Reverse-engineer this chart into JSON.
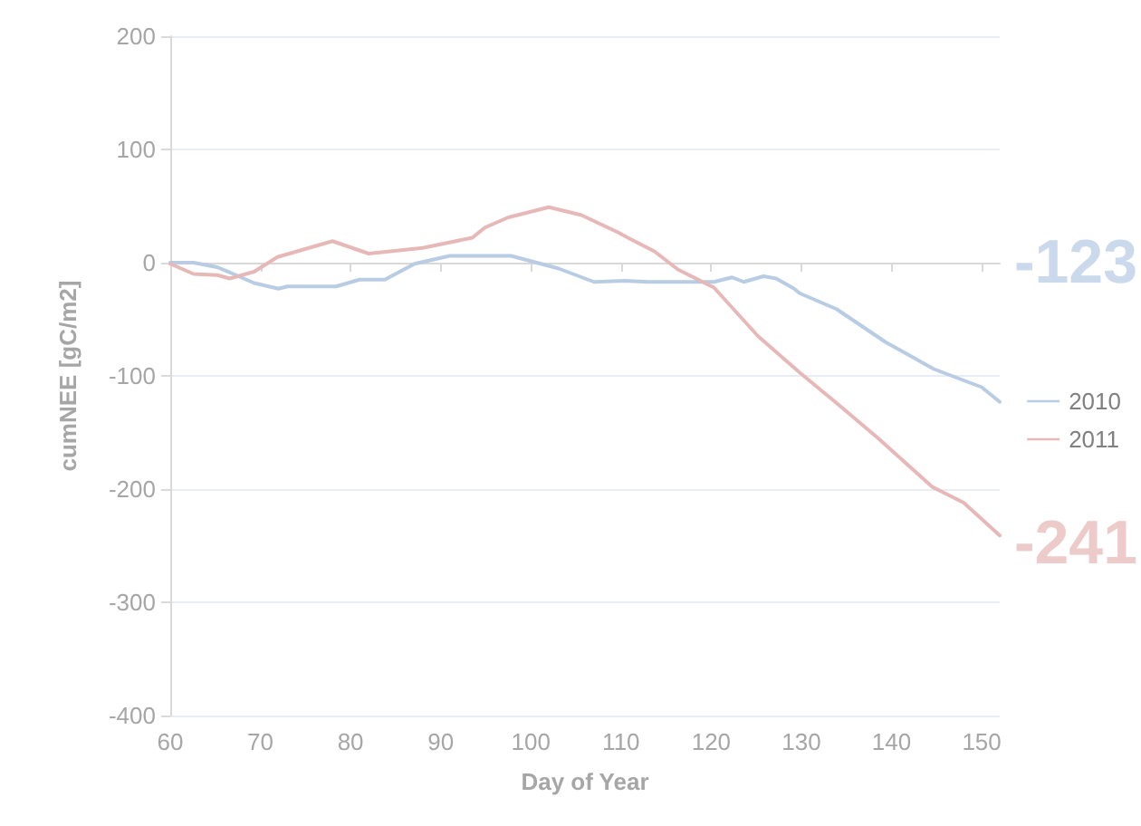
{
  "chart_data": {
    "type": "line",
    "xlabel": "Day of Year",
    "ylabel": "cumNEE [gC/m2]",
    "xlim": [
      60,
      152
    ],
    "xticks": [
      60,
      70,
      80,
      90,
      100,
      110,
      120,
      130,
      140,
      150
    ],
    "ylim": [
      -400,
      200
    ],
    "yticks": [
      -400,
      -300,
      -200,
      -100,
      0,
      100,
      200
    ],
    "grid": "y",
    "legend": "right",
    "marker": "none",
    "line_style": "solid",
    "series": [
      {
        "name": "2010",
        "color": "#b8cce4",
        "x": [
          60,
          62.6,
          65.2,
          67,
          69.3,
          72,
          73,
          78.4,
          81,
          83.8,
          87.1,
          91,
          97.8,
          103,
          107,
          110.4,
          113,
          116,
          120.3,
          122.3,
          123.6,
          125.8,
          127.2,
          129.2,
          129.8,
          133.9,
          139.3,
          144.7,
          150,
          152
        ],
        "values": [
          0,
          0,
          -4,
          -10,
          -18,
          -23,
          -21,
          -21,
          -15,
          -15,
          -1,
          6,
          6,
          -5,
          -17,
          -16,
          -17,
          -17,
          -17,
          -13,
          -17,
          -12,
          -14,
          -23,
          -27,
          -41,
          -70,
          -94,
          -110,
          -123
        ]
      },
      {
        "name": "2011",
        "color": "#e6b9b8",
        "x": [
          60,
          62.6,
          65.2,
          66.6,
          69.3,
          71.9,
          78,
          82,
          88,
          93.5,
          94.9,
          97.5,
          102,
          105.6,
          109.6,
          111,
          113.7,
          116.3,
          120.3,
          125.2,
          129.8,
          133.9,
          138.5,
          144.5,
          148,
          152
        ],
        "values": [
          -1,
          -10,
          -11,
          -14,
          -8,
          5,
          19,
          8,
          13,
          22,
          31,
          40,
          49,
          42,
          27,
          21,
          10,
          -6,
          -22,
          -65,
          -97,
          -124,
          -155,
          -198,
          -212,
          -241
        ]
      }
    ],
    "annotations": [
      "-123",
      "-241"
    ]
  }
}
